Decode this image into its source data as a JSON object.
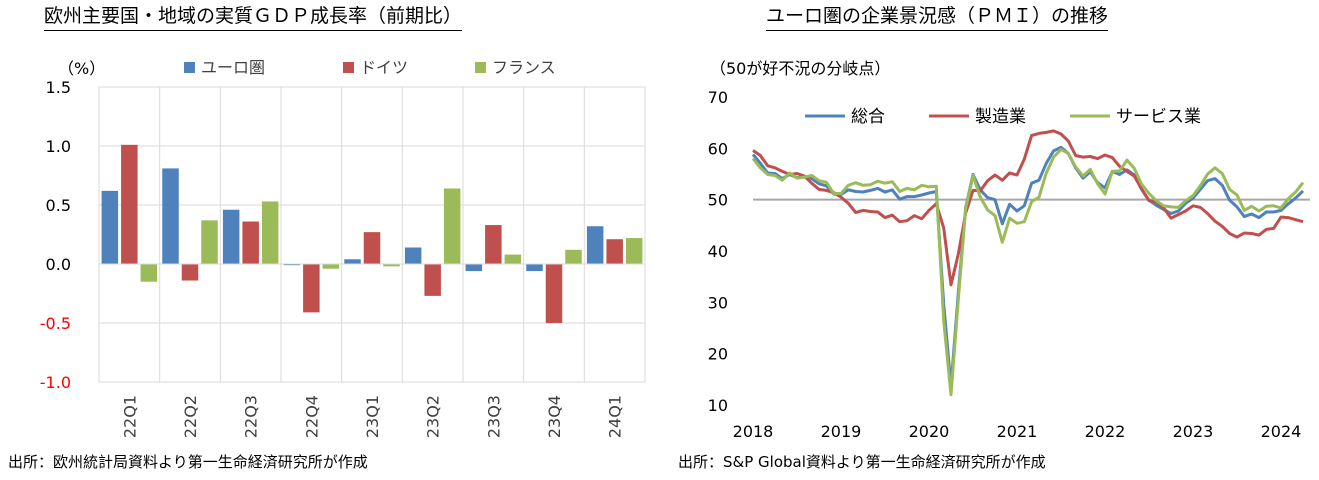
{
  "charts": {
    "left": {
      "title": "欧州主要国・地域の実質ＧＤＰ成長率（前期比）",
      "source": "出所：欧州統計局資料より第一生命経済研究所が作成"
    },
    "right": {
      "title": "ユーロ圏の企業景況感（ＰＭＩ）の推移",
      "source": "出所：S&P Global資料より第一生命経済研究所が作成"
    }
  },
  "chart_data": [
    {
      "type": "bar",
      "title": "欧州主要国・地域の実質ＧＤＰ成長率（前期比）",
      "ylabel": "（%）",
      "ylim": [
        -1.0,
        1.5
      ],
      "yticks": [
        1.5,
        1.0,
        0.5,
        0.0,
        -0.5,
        -1.0
      ],
      "ytick_labels": [
        "1.5",
        "1.0",
        "0.5",
        "0.0",
        "-0.5",
        "-1.0"
      ],
      "negative_tick_color": "#ff0000",
      "grid": true,
      "legend_position": "top",
      "categories": [
        "22Q1",
        "22Q2",
        "22Q3",
        "22Q4",
        "23Q1",
        "23Q2",
        "23Q3",
        "23Q4",
        "24Q1"
      ],
      "series": [
        {
          "name": "ユーロ圏",
          "color": "#4f81bd",
          "values": [
            0.62,
            0.81,
            0.46,
            -0.01,
            0.04,
            0.14,
            -0.06,
            -0.06,
            0.32
          ]
        },
        {
          "name": "ドイツ",
          "color": "#c0504d",
          "values": [
            1.01,
            -0.14,
            0.36,
            -0.41,
            0.27,
            -0.27,
            0.33,
            -0.5,
            0.21
          ]
        },
        {
          "name": "フランス",
          "color": "#9bbb59",
          "values": [
            -0.15,
            0.37,
            0.53,
            -0.04,
            -0.02,
            0.64,
            0.08,
            0.12,
            0.22
          ]
        }
      ]
    },
    {
      "type": "line",
      "title": "ユーロ圏の企業景況感（ＰＭＩ）の推移",
      "ylabel": "（50が好不況の分岐点）",
      "ylim": [
        10,
        70
      ],
      "yticks": [
        70,
        60,
        50,
        40,
        30,
        20,
        10
      ],
      "xlim": [
        2018,
        2024.33
      ],
      "xticks": [
        2018,
        2019,
        2020,
        2021,
        2022,
        2023,
        2024
      ],
      "reference_line": 50,
      "grid": false,
      "legend_position": "top",
      "x_start": "2018-01",
      "frequency": "monthly",
      "series": [
        {
          "name": "総合",
          "color": "#4f81bd",
          "values": [
            58.8,
            57.1,
            55.2,
            55.1,
            54.1,
            54.9,
            54.3,
            54.5,
            54.1,
            53.1,
            52.7,
            51.1,
            51.0,
            51.9,
            51.6,
            51.5,
            51.8,
            52.2,
            51.5,
            51.9,
            50.1,
            50.6,
            50.6,
            50.9,
            51.3,
            51.6,
            29.7,
            13.6,
            31.9,
            48.5,
            54.9,
            51.9,
            50.4,
            50.0,
            45.3,
            49.1,
            47.8,
            48.8,
            53.2,
            53.8,
            57.1,
            59.5,
            60.2,
            59.0,
            56.2,
            54.2,
            55.4,
            53.3,
            52.3,
            55.5,
            54.9,
            55.8,
            54.8,
            52.0,
            49.9,
            48.9,
            48.1,
            47.3,
            47.8,
            49.3,
            50.3,
            52.0,
            53.7,
            54.1,
            52.8,
            49.9,
            48.6,
            46.7,
            47.2,
            46.5,
            47.6,
            47.6,
            47.9,
            49.2,
            50.3,
            51.7
          ]
        },
        {
          "name": "製造業",
          "color": "#c0504d",
          "values": [
            59.6,
            58.6,
            56.6,
            56.2,
            55.5,
            54.9,
            55.1,
            54.6,
            53.2,
            52.0,
            51.8,
            51.4,
            50.5,
            49.3,
            47.5,
            47.9,
            47.7,
            47.6,
            46.5,
            47.0,
            45.7,
            45.9,
            46.9,
            46.3,
            47.9,
            49.2,
            44.5,
            33.4,
            39.4,
            47.4,
            51.8,
            51.7,
            53.7,
            54.8,
            53.8,
            55.2,
            54.8,
            57.9,
            62.5,
            62.9,
            63.1,
            63.4,
            62.8,
            61.4,
            58.6,
            58.3,
            58.4,
            58.0,
            58.7,
            58.2,
            56.5,
            55.5,
            54.6,
            52.1,
            49.8,
            49.6,
            48.4,
            46.4,
            47.1,
            47.8,
            48.8,
            48.5,
            47.3,
            45.8,
            44.8,
            43.4,
            42.7,
            43.5,
            43.4,
            43.1,
            44.2,
            44.4,
            46.6,
            46.5,
            46.1,
            45.7
          ]
        },
        {
          "name": "サービス業",
          "color": "#9bbb59",
          "values": [
            58.0,
            56.2,
            54.9,
            54.7,
            53.8,
            55.2,
            54.2,
            54.4,
            54.7,
            53.7,
            53.4,
            51.2,
            51.2,
            52.8,
            53.3,
            52.8,
            52.9,
            53.6,
            53.2,
            53.5,
            51.6,
            52.2,
            51.9,
            52.8,
            52.5,
            52.6,
            26.4,
            12.0,
            30.5,
            48.3,
            54.7,
            50.5,
            48.0,
            46.9,
            41.7,
            46.4,
            45.4,
            45.7,
            49.6,
            50.5,
            55.2,
            58.3,
            59.8,
            59.0,
            56.4,
            54.6,
            55.9,
            53.1,
            51.1,
            55.5,
            55.6,
            57.7,
            56.1,
            53.0,
            51.2,
            49.8,
            48.8,
            48.6,
            48.5,
            49.8,
            50.8,
            52.7,
            55.0,
            56.2,
            55.1,
            52.0,
            50.9,
            47.9,
            48.7,
            47.8,
            48.7,
            48.8,
            48.4,
            50.2,
            51.5,
            53.3
          ]
        }
      ]
    }
  ]
}
